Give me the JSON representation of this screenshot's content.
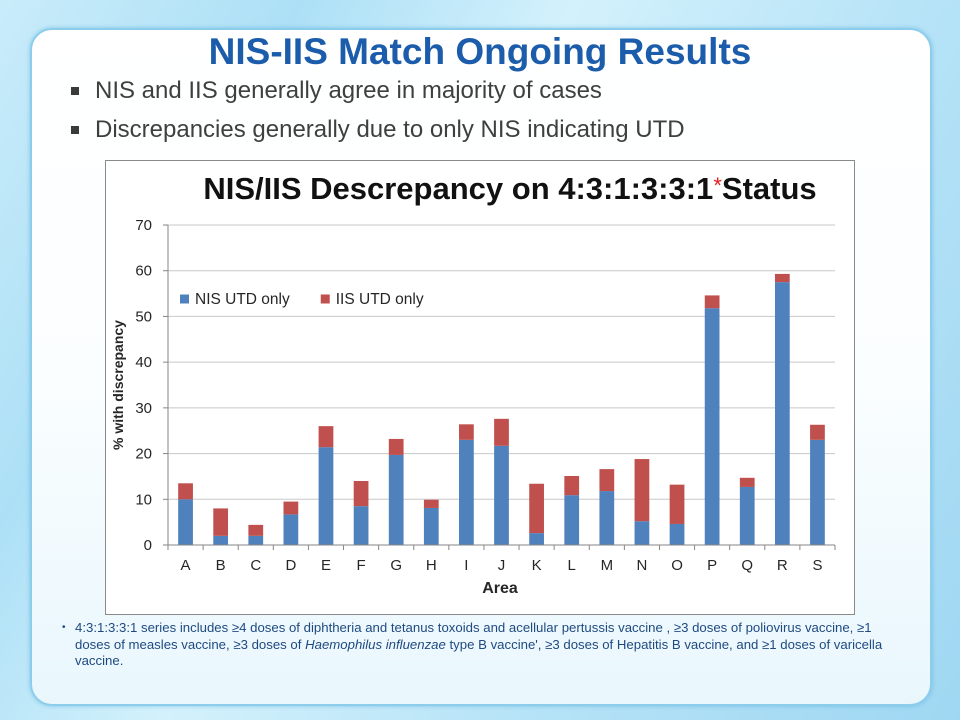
{
  "slide": {
    "title": "NIS-IIS Match Ongoing Results",
    "bullets": [
      "NIS and IIS generally agree in majority of cases",
      "Discrepancies generally due to only NIS indicating UTD"
    ]
  },
  "chart_data": {
    "type": "bar",
    "stacked": true,
    "title": "NIS/IIS Descrepancy on 4:3:1:3:3:1 Status",
    "title_marker": "*",
    "xlabel": "Area",
    "ylabel": "% with discrepancy",
    "ylim": [
      0,
      70
    ],
    "yticks": [
      0,
      10,
      20,
      30,
      40,
      50,
      60,
      70
    ],
    "grid": true,
    "legend_position": "top-left",
    "categories": [
      "A",
      "B",
      "C",
      "D",
      "E",
      "F",
      "G",
      "H",
      "I",
      "J",
      "K",
      "L",
      "M",
      "N",
      "O",
      "P",
      "Q",
      "R",
      "S"
    ],
    "series": [
      {
        "name": "NIS UTD only",
        "color": "#4F81BD",
        "values": [
          10,
          2,
          2,
          6.7,
          21.4,
          8.5,
          19.7,
          8.1,
          23,
          21.7,
          2.6,
          10.9,
          11.8,
          5.2,
          4.6,
          51.8,
          12.7,
          57.5,
          23
        ]
      },
      {
        "name": "IIS UTD only",
        "color": "#C0504D",
        "values": [
          3.5,
          6,
          2.4,
          2.8,
          4.6,
          5.5,
          3.5,
          1.8,
          3.4,
          5.9,
          10.8,
          4.2,
          4.8,
          13.6,
          8.6,
          2.8,
          2,
          1.8,
          3.3
        ]
      }
    ]
  },
  "footnote": {
    "text_before": "4:3:1:3:3:1 series includes ≥4 doses of diphtheria and tetanus toxoids and acellular pertussis vaccine , ≥3 doses of poliovirus vaccine, ≥1 doses of measles vaccine, ≥3 doses of ",
    "text_italic": "Haemophilus influenzae",
    "text_after": " type B vaccine', ≥3 doses of Hepatitis B vaccine, and ≥1 doses of varicella vaccine."
  },
  "colors": {
    "title": "#1B5CAB",
    "bullet_text": "#3F3F3F",
    "footnote_text": "#1F4A80",
    "title_marker": "#E41B1B"
  }
}
